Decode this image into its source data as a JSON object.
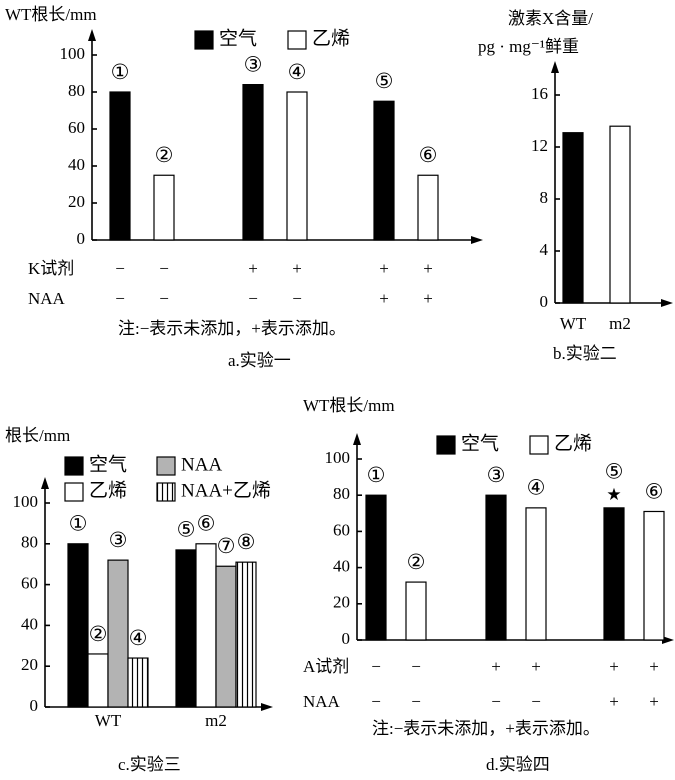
{
  "chart_data": [
    {
      "type": "bar",
      "y_label": [
        "WT根长/mm"
      ],
      "categories": [
        null,
        null,
        null
      ],
      "series": [
        {
          "name": "空气",
          "color": "#000000",
          "values": [
            80,
            84,
            75
          ],
          "labels": [
            "①",
            "③",
            "⑤"
          ]
        },
        {
          "name": "乙烯",
          "color": "#ffffff",
          "values": [
            35,
            80,
            35
          ],
          "labels": [
            "②",
            "④",
            "⑥"
          ]
        }
      ],
      "ylim": [
        0,
        100
      ],
      "yticks": [
        0,
        20,
        40,
        60,
        80,
        100
      ],
      "treatments": [
        {
          "name": "K试剂",
          "signs": [
            "−",
            "−",
            "+",
            "+",
            "+",
            "+"
          ]
        },
        {
          "name": "NAA",
          "signs": [
            "−",
            "−",
            "−",
            "−",
            "+",
            "+"
          ]
        }
      ],
      "note": "注:−表示未添加，+表示添加。",
      "caption": "a.实验一"
    },
    {
      "type": "bar",
      "y_label": [
        "激素X含量/",
        "pg · mg⁻¹鲜重"
      ],
      "categories": [
        "WT",
        "m2"
      ],
      "values": [
        13.1,
        13.6
      ],
      "colors": [
        "#000000",
        "#ffffff"
      ],
      "ylim": [
        0,
        18
      ],
      "yticks": [
        0,
        4,
        8,
        12,
        16
      ],
      "caption": "b.实验二"
    },
    {
      "type": "bar",
      "y_label": [
        "根长/mm"
      ],
      "categories": [
        "WT",
        "m2"
      ],
      "series": [
        {
          "name": "空气",
          "color": "#000000",
          "values": [
            80,
            77
          ],
          "labels": [
            "①",
            "⑤"
          ]
        },
        {
          "name": "乙烯",
          "color": "#ffffff",
          "values": [
            26,
            80
          ],
          "labels": [
            "②",
            "⑥"
          ]
        },
        {
          "name": "NAA",
          "color": "#b3b3b3",
          "values": [
            72,
            69
          ],
          "labels": [
            "③",
            "⑦"
          ]
        },
        {
          "name": "NAA+乙烯",
          "color": "#ffffff",
          "pattern": "vertical-stripes",
          "values": [
            24,
            71
          ],
          "labels": [
            "④",
            "⑧"
          ]
        }
      ],
      "ylim": [
        0,
        100
      ],
      "yticks": [
        0,
        20,
        40,
        60,
        80,
        100
      ],
      "caption": "c.实验三"
    },
    {
      "type": "bar",
      "y_label": [
        "WT根长/mm"
      ],
      "categories": [
        null,
        null,
        null
      ],
      "series": [
        {
          "name": "空气",
          "color": "#000000",
          "values": [
            80,
            80,
            73
          ],
          "labels": [
            "①",
            "③",
            "⑤"
          ],
          "markers": [
            null,
            null,
            "★"
          ]
        },
        {
          "name": "乙烯",
          "color": "#ffffff",
          "values": [
            32,
            73,
            71
          ],
          "labels": [
            "②",
            "④",
            "⑥"
          ]
        }
      ],
      "ylim": [
        0,
        100
      ],
      "yticks": [
        0,
        20,
        40,
        60,
        80,
        100
      ],
      "treatments": [
        {
          "name": "A试剂",
          "signs": [
            "−",
            "−",
            "+",
            "+",
            "+",
            "+"
          ]
        },
        {
          "name": "NAA",
          "signs": [
            "−",
            "−",
            "−",
            "−",
            "+",
            "+"
          ]
        }
      ],
      "note": "注:−表示未添加，+表示添加。",
      "caption": "d.实验四"
    }
  ]
}
